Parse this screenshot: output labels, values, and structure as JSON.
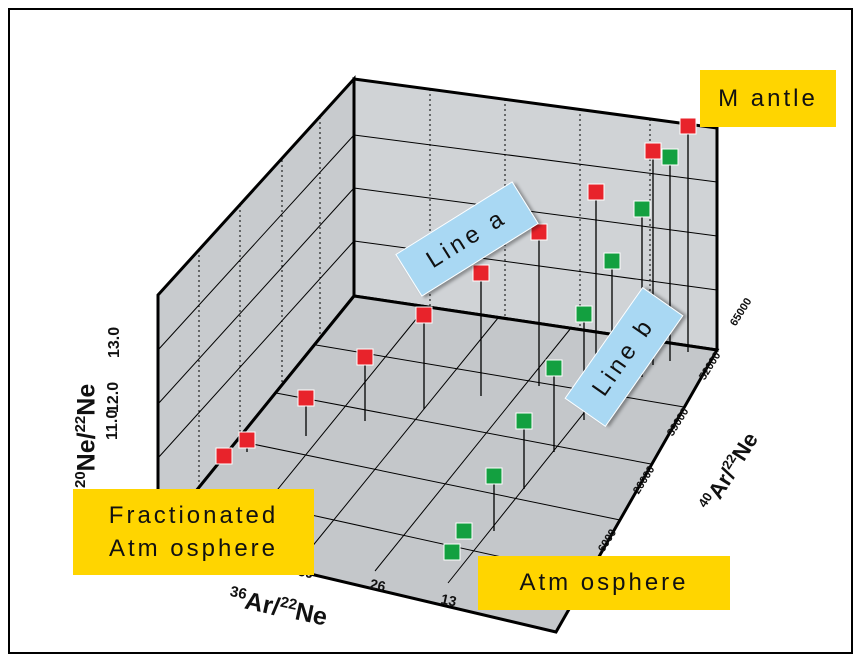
{
  "chart_data": {
    "type": "scatter",
    "subtype": "3d-stem",
    "axes": {
      "z": {
        "label_main": "Ne/",
        "label_sup1": "20",
        "label_sup2": "22",
        "label_tail": "Ne",
        "ticks": [
          "11.0",
          "12.0",
          "13.0"
        ],
        "range": [
          10.5,
          13.5
        ]
      },
      "x": {
        "label_sup1": "36",
        "label_main": "Ar/",
        "label_sup2": "22",
        "label_tail": "Ne",
        "ticks": [
          "39",
          "26",
          "13"
        ]
      },
      "y": {
        "label_sup1": "40",
        "label_main": "Ar/",
        "label_sup2": "22",
        "label_tail": "Ne",
        "ticks": [
          "6000",
          "26000",
          "39000",
          "52000",
          "65000"
        ]
      }
    },
    "series": [
      {
        "color": "#e8232b",
        "description": "line a (red)"
      },
      {
        "color": "#13a040",
        "description": "line b (green)"
      }
    ],
    "grid": true
  },
  "annotations": {
    "mantle": "M antle",
    "fractionated_line1": "Fractionated",
    "fractionated_line2": "Atm osphere",
    "atmosphere": "Atm osphere",
    "line_a": "Line a",
    "line_b": "Line b"
  },
  "colors": {
    "wall": "#d0d3d6",
    "floor": "#c7cacc",
    "highlight": "#ffd500",
    "callout": "#a9d8f3"
  }
}
